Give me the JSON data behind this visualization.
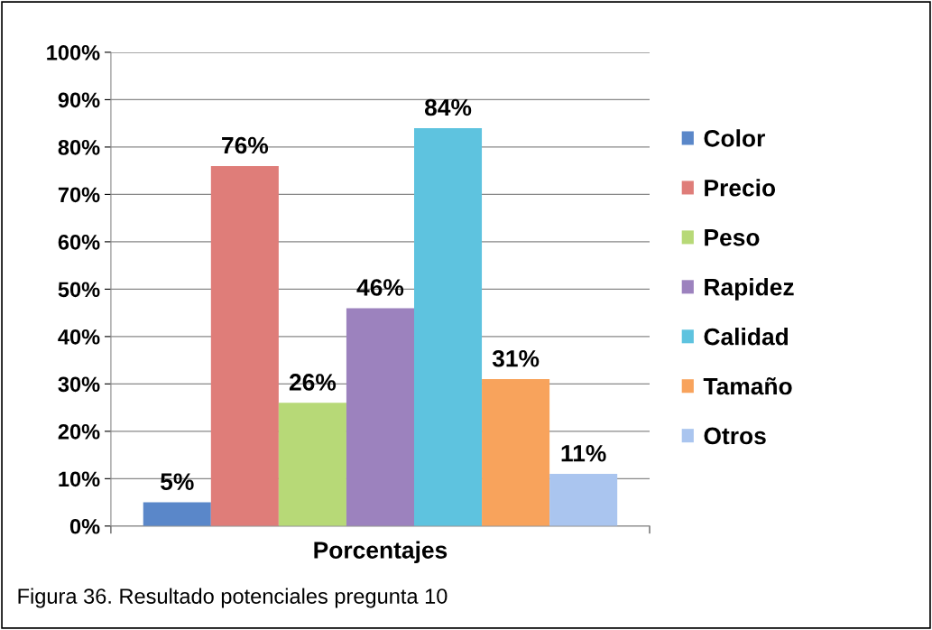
{
  "chart_data": {
    "type": "bar",
    "categories": [
      "Porcentajes"
    ],
    "series": [
      {
        "name": "Color",
        "color": "#5a87c9",
        "values": [
          5
        ],
        "value_labels": [
          "5%"
        ]
      },
      {
        "name": "Precio",
        "color": "#df7d79",
        "values": [
          76
        ],
        "value_labels": [
          "76%"
        ]
      },
      {
        "name": "Peso",
        "color": "#b7d977",
        "values": [
          26
        ],
        "value_labels": [
          "26%"
        ]
      },
      {
        "name": "Rapidez",
        "color": "#9c82be",
        "values": [
          46
        ],
        "value_labels": [
          "46%"
        ]
      },
      {
        "name": "Calidad",
        "color": "#5ec3df",
        "values": [
          84
        ],
        "value_labels": [
          "84%"
        ]
      },
      {
        "name": "Tamaño",
        "color": "#f8a35c",
        "values": [
          31
        ],
        "value_labels": [
          "31%"
        ]
      },
      {
        "name": "Otros",
        "color": "#aac5ef",
        "values": [
          11
        ],
        "value_labels": [
          "11%"
        ]
      }
    ],
    "ylim": [
      0,
      100
    ],
    "yticks": [
      {
        "value": 0,
        "label": "0%"
      },
      {
        "value": 10,
        "label": "10%"
      },
      {
        "value": 20,
        "label": "20%"
      },
      {
        "value": 30,
        "label": "30%"
      },
      {
        "value": 40,
        "label": "40%"
      },
      {
        "value": 50,
        "label": "50%"
      },
      {
        "value": 60,
        "label": "60%"
      },
      {
        "value": 70,
        "label": "70%"
      },
      {
        "value": 80,
        "label": "80%"
      },
      {
        "value": 90,
        "label": "90%"
      },
      {
        "value": 100,
        "label": "100%"
      }
    ],
    "grid": "y",
    "legend": "right",
    "annotations": [
      "Figura 36. Resultado potenciales pregunta 10"
    ]
  }
}
